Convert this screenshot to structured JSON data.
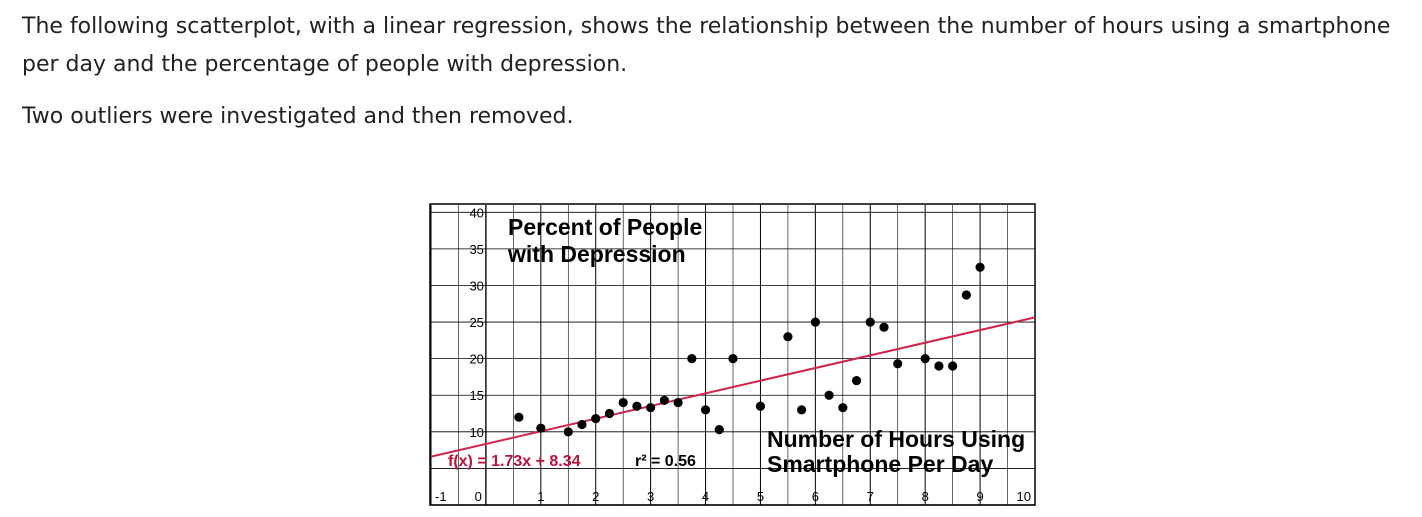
{
  "intro": {
    "paragraph1": "The following scatterplot, with a linear regression, shows the relationship between the number of hours using a smartphone per day and the percentage of people with depression.",
    "paragraph2": "Two outliers were investigated and then removed."
  },
  "chart_data": {
    "type": "scatter",
    "ylabel_line1": "Percent of People",
    "ylabel_line2": "with Depression",
    "xlabel_line1": "Number of Hours Using",
    "xlabel_line2": "Smartphone Per Day",
    "xlim": [
      -1,
      10
    ],
    "ylim": [
      0,
      41
    ],
    "x_ticks": [
      "-1",
      "0",
      "1",
      "2",
      "3",
      "4",
      "5",
      "6",
      "7",
      "8",
      "9",
      "10"
    ],
    "y_ticks": [
      "10",
      "15",
      "20",
      "25",
      "30",
      "35",
      "40"
    ],
    "points": [
      {
        "x": 0.6,
        "y": 12
      },
      {
        "x": 1.0,
        "y": 10.5
      },
      {
        "x": 1.5,
        "y": 10
      },
      {
        "x": 1.75,
        "y": 11
      },
      {
        "x": 2.0,
        "y": 11.8
      },
      {
        "x": 2.25,
        "y": 12.5
      },
      {
        "x": 2.5,
        "y": 14
      },
      {
        "x": 2.75,
        "y": 13.5
      },
      {
        "x": 3.0,
        "y": 13.3
      },
      {
        "x": 3.25,
        "y": 14.3
      },
      {
        "x": 3.5,
        "y": 14
      },
      {
        "x": 3.75,
        "y": 20
      },
      {
        "x": 4.0,
        "y": 13
      },
      {
        "x": 4.25,
        "y": 10.3
      },
      {
        "x": 4.5,
        "y": 20
      },
      {
        "x": 5.0,
        "y": 13.5
      },
      {
        "x": 5.5,
        "y": 23
      },
      {
        "x": 5.75,
        "y": 13
      },
      {
        "x": 6.0,
        "y": 25
      },
      {
        "x": 6.25,
        "y": 15
      },
      {
        "x": 6.5,
        "y": 13.3
      },
      {
        "x": 6.75,
        "y": 17
      },
      {
        "x": 7.0,
        "y": 25
      },
      {
        "x": 7.25,
        "y": 24.3
      },
      {
        "x": 7.5,
        "y": 19.3
      },
      {
        "x": 8.0,
        "y": 20
      },
      {
        "x": 8.25,
        "y": 19
      },
      {
        "x": 8.5,
        "y": 19
      },
      {
        "x": 8.75,
        "y": 28.7
      },
      {
        "x": 9.0,
        "y": 32.5
      }
    ],
    "regression": {
      "slope": 1.73,
      "intercept": 8.34,
      "equation_label": "f(x) = 1.73x + 8.34",
      "r2_label": "r² = 0.56",
      "color": "#d0244a"
    },
    "grid": true
  }
}
